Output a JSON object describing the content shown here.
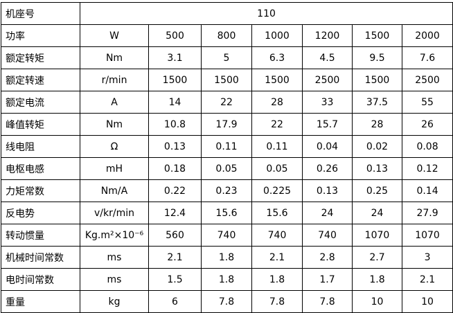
{
  "table": {
    "header": [
      "机座号",
      "110"
    ],
    "rows": [
      [
        "功率",
        "W",
        "500",
        "800",
        "1000",
        "1200",
        "1500",
        "2000"
      ],
      [
        "额定转矩",
        "Nm",
        "3.1",
        "5",
        "6.3",
        "4.5",
        "9.5",
        "7.6"
      ],
      [
        "额定转速",
        "r/min",
        "1500",
        "1500",
        "1500",
        "2500",
        "1500",
        "2500"
      ],
      [
        "额定电流",
        "A",
        "14",
        "22",
        "28",
        "33",
        "37.5",
        "55"
      ],
      [
        "峰值转矩",
        "Nm",
        "10.8",
        "17.9",
        "22",
        "15.7",
        "28",
        "26"
      ],
      [
        "线电阻",
        "Ω",
        "0.13",
        "0.11",
        "0.11",
        "0.04",
        "0.02",
        "0.08"
      ],
      [
        "电枢电感",
        "mH",
        "0.18",
        "0.05",
        "0.05",
        "0.26",
        "0.13",
        "0.12"
      ],
      [
        "力矩常数",
        "Nm/A",
        "0.22",
        "0.23",
        "0.225",
        "0.13",
        "0.25",
        "0.14"
      ],
      [
        "反电势",
        "v/kr/min",
        "12.4",
        "15.6",
        "15.6",
        "24",
        "24",
        "27.9"
      ],
      [
        "转动惯量",
        "Kg.m²×10⁻⁶",
        "560",
        "740",
        "740",
        "740",
        "1070",
        "1070"
      ],
      [
        "机械时间常数",
        "ms",
        "2.1",
        "1.8",
        "2.1",
        "2.8",
        "2.7",
        "3"
      ],
      [
        "电时间常数",
        "ms",
        "1.5",
        "1.8",
        "1.8",
        "1.7",
        "1.8",
        "2.1"
      ],
      [
        "重量",
        "kg",
        "6",
        "7.8",
        "7.8",
        "7.8",
        "10",
        "10"
      ]
    ]
  }
}
